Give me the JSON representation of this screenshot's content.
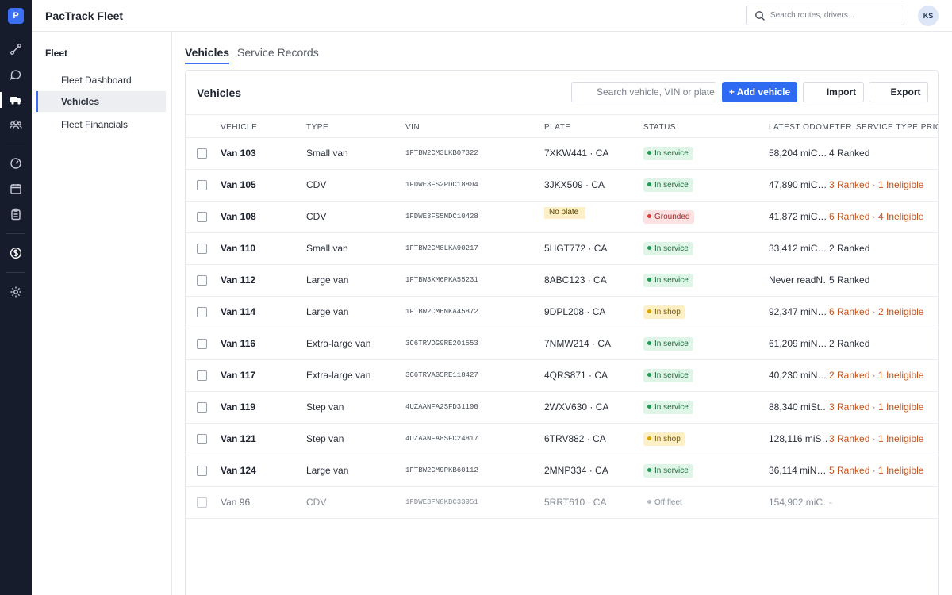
{
  "app": {
    "logo_letter": "P",
    "title": "PacTrack Fleet",
    "user_initials": "KS"
  },
  "rail_icons": [
    "routes-icon",
    "messages-icon",
    "truck-icon",
    "team-icon",
    "gauge-icon",
    "calendar-icon",
    "clipboard-icon",
    "dollar-icon",
    "gear-icon"
  ],
  "search": {
    "placeholder": "Search routes, drivers..."
  },
  "sidebar": {
    "heading": "Fleet",
    "items": [
      {
        "label": "Fleet Dashboard"
      },
      {
        "label": "Vehicles"
      },
      {
        "label": "Fleet Financials"
      }
    ]
  },
  "tabs": [
    {
      "label": "Vehicles"
    },
    {
      "label": "Service Records"
    }
  ],
  "panel": {
    "title": "Vehicles",
    "search_placeholder": "Search vehicle, VIN or plate",
    "add_label": "+ Add vehicle",
    "import_label": "Import",
    "export_label": "Export"
  },
  "columns": [
    "VEHICLE",
    "TYPE",
    "VIN",
    "PLATE",
    "STATUS",
    "LATEST ODOMETER",
    "SERVICE TYPE PRIOR"
  ],
  "status_colors": {
    "in-service": "#1f9a52",
    "in-shop": "#d9a400",
    "grounded": "#d93b3b",
    "off-fleet": "#b5bac3"
  },
  "vehicles": [
    {
      "name": "Van 103",
      "type": "Small van",
      "vin": "1FTBW2CM3LKB07322",
      "plate": "7XKW441 · CA",
      "status": "In service",
      "status_class": "in-service",
      "odometer": "58,204 miC…",
      "priority": "4 Ranked",
      "priority_class": "plain"
    },
    {
      "name": "Van 105",
      "type": "CDV",
      "vin": "1FDWE3FS2PDC18804",
      "plate": "3JKX509 · CA",
      "status": "In service",
      "status_class": "in-service",
      "odometer": "47,890 miC…",
      "priority": "3 Ranked · 1 Ineligible",
      "priority_class": "warn"
    },
    {
      "name": "Van 108",
      "type": "CDV",
      "vin": "1FDWE3FS5MDC10428",
      "plate": "No plate",
      "status": "Grounded",
      "status_class": "grounded",
      "odometer": "41,872 miC…",
      "priority": "6 Ranked · 4 Ineligible",
      "priority_class": "warn",
      "no_plate": true
    },
    {
      "name": "Van 110",
      "type": "Small van",
      "vin": "1FTBW2CM8LKA90217",
      "plate": "5HGT772 · CA",
      "status": "In service",
      "status_class": "in-service",
      "odometer": "33,412 miC…",
      "priority": "2 Ranked",
      "priority_class": "plain"
    },
    {
      "name": "Van 112",
      "type": "Large van",
      "vin": "1FTBW3XM6PKA55231",
      "plate": "8ABC123 · CA",
      "status": "In service",
      "status_class": "in-service",
      "odometer": "Never readN…",
      "priority": "5 Ranked",
      "priority_class": "plain"
    },
    {
      "name": "Van 114",
      "type": "Large van",
      "vin": "1FTBW2CM6NKA45872",
      "plate": "9DPL208 · CA",
      "status": "In shop",
      "status_class": "in-shop",
      "odometer": "92,347 miN…",
      "priority": "6 Ranked · 2 Ineligible",
      "priority_class": "warn"
    },
    {
      "name": "Van 116",
      "type": "Extra-large van",
      "vin": "3C6TRVDG9RE201553",
      "plate": "7NMW214 · CA",
      "status": "In service",
      "status_class": "in-service",
      "odometer": "61,209 miN…",
      "priority": "2 Ranked",
      "priority_class": "plain"
    },
    {
      "name": "Van 117",
      "type": "Extra-large van",
      "vin": "3C6TRVAG5RE118427",
      "plate": "4QRS871 · CA",
      "status": "In service",
      "status_class": "in-service",
      "odometer": "40,230 miN…",
      "priority": "2 Ranked · 1 Ineligible",
      "priority_class": "warn"
    },
    {
      "name": "Van 119",
      "type": "Step van",
      "vin": "4UZAANFA2SFD31190",
      "plate": "2WXV630 · CA",
      "status": "In service",
      "status_class": "in-service",
      "odometer": "88,340 miSt…",
      "priority": "3 Ranked · 1 Ineligible",
      "priority_class": "warn"
    },
    {
      "name": "Van 121",
      "type": "Step van",
      "vin": "4UZAANFA8SFC24817",
      "plate": "6TRV882 · CA",
      "status": "In shop",
      "status_class": "in-shop",
      "odometer": "128,116 miS…",
      "priority": "3 Ranked · 1 Ineligible",
      "priority_class": "warn"
    },
    {
      "name": "Van 124",
      "type": "Large van",
      "vin": "1FTBW2CM9PKB60112",
      "plate": "2MNP334 · CA",
      "status": "In service",
      "status_class": "in-service",
      "odometer": "36,114 miN…",
      "priority": "5 Ranked · 1 Ineligible",
      "priority_class": "warn"
    },
    {
      "name": "Van 96",
      "type": "CDV",
      "vin": "1FDWE3FN8KDC33951",
      "plate": "5RRT610 · CA",
      "status": "Off fleet",
      "status_class": "off-fleet",
      "odometer": "154,902 miC…",
      "priority": "-",
      "priority_class": "dash",
      "muted": true
    }
  ]
}
